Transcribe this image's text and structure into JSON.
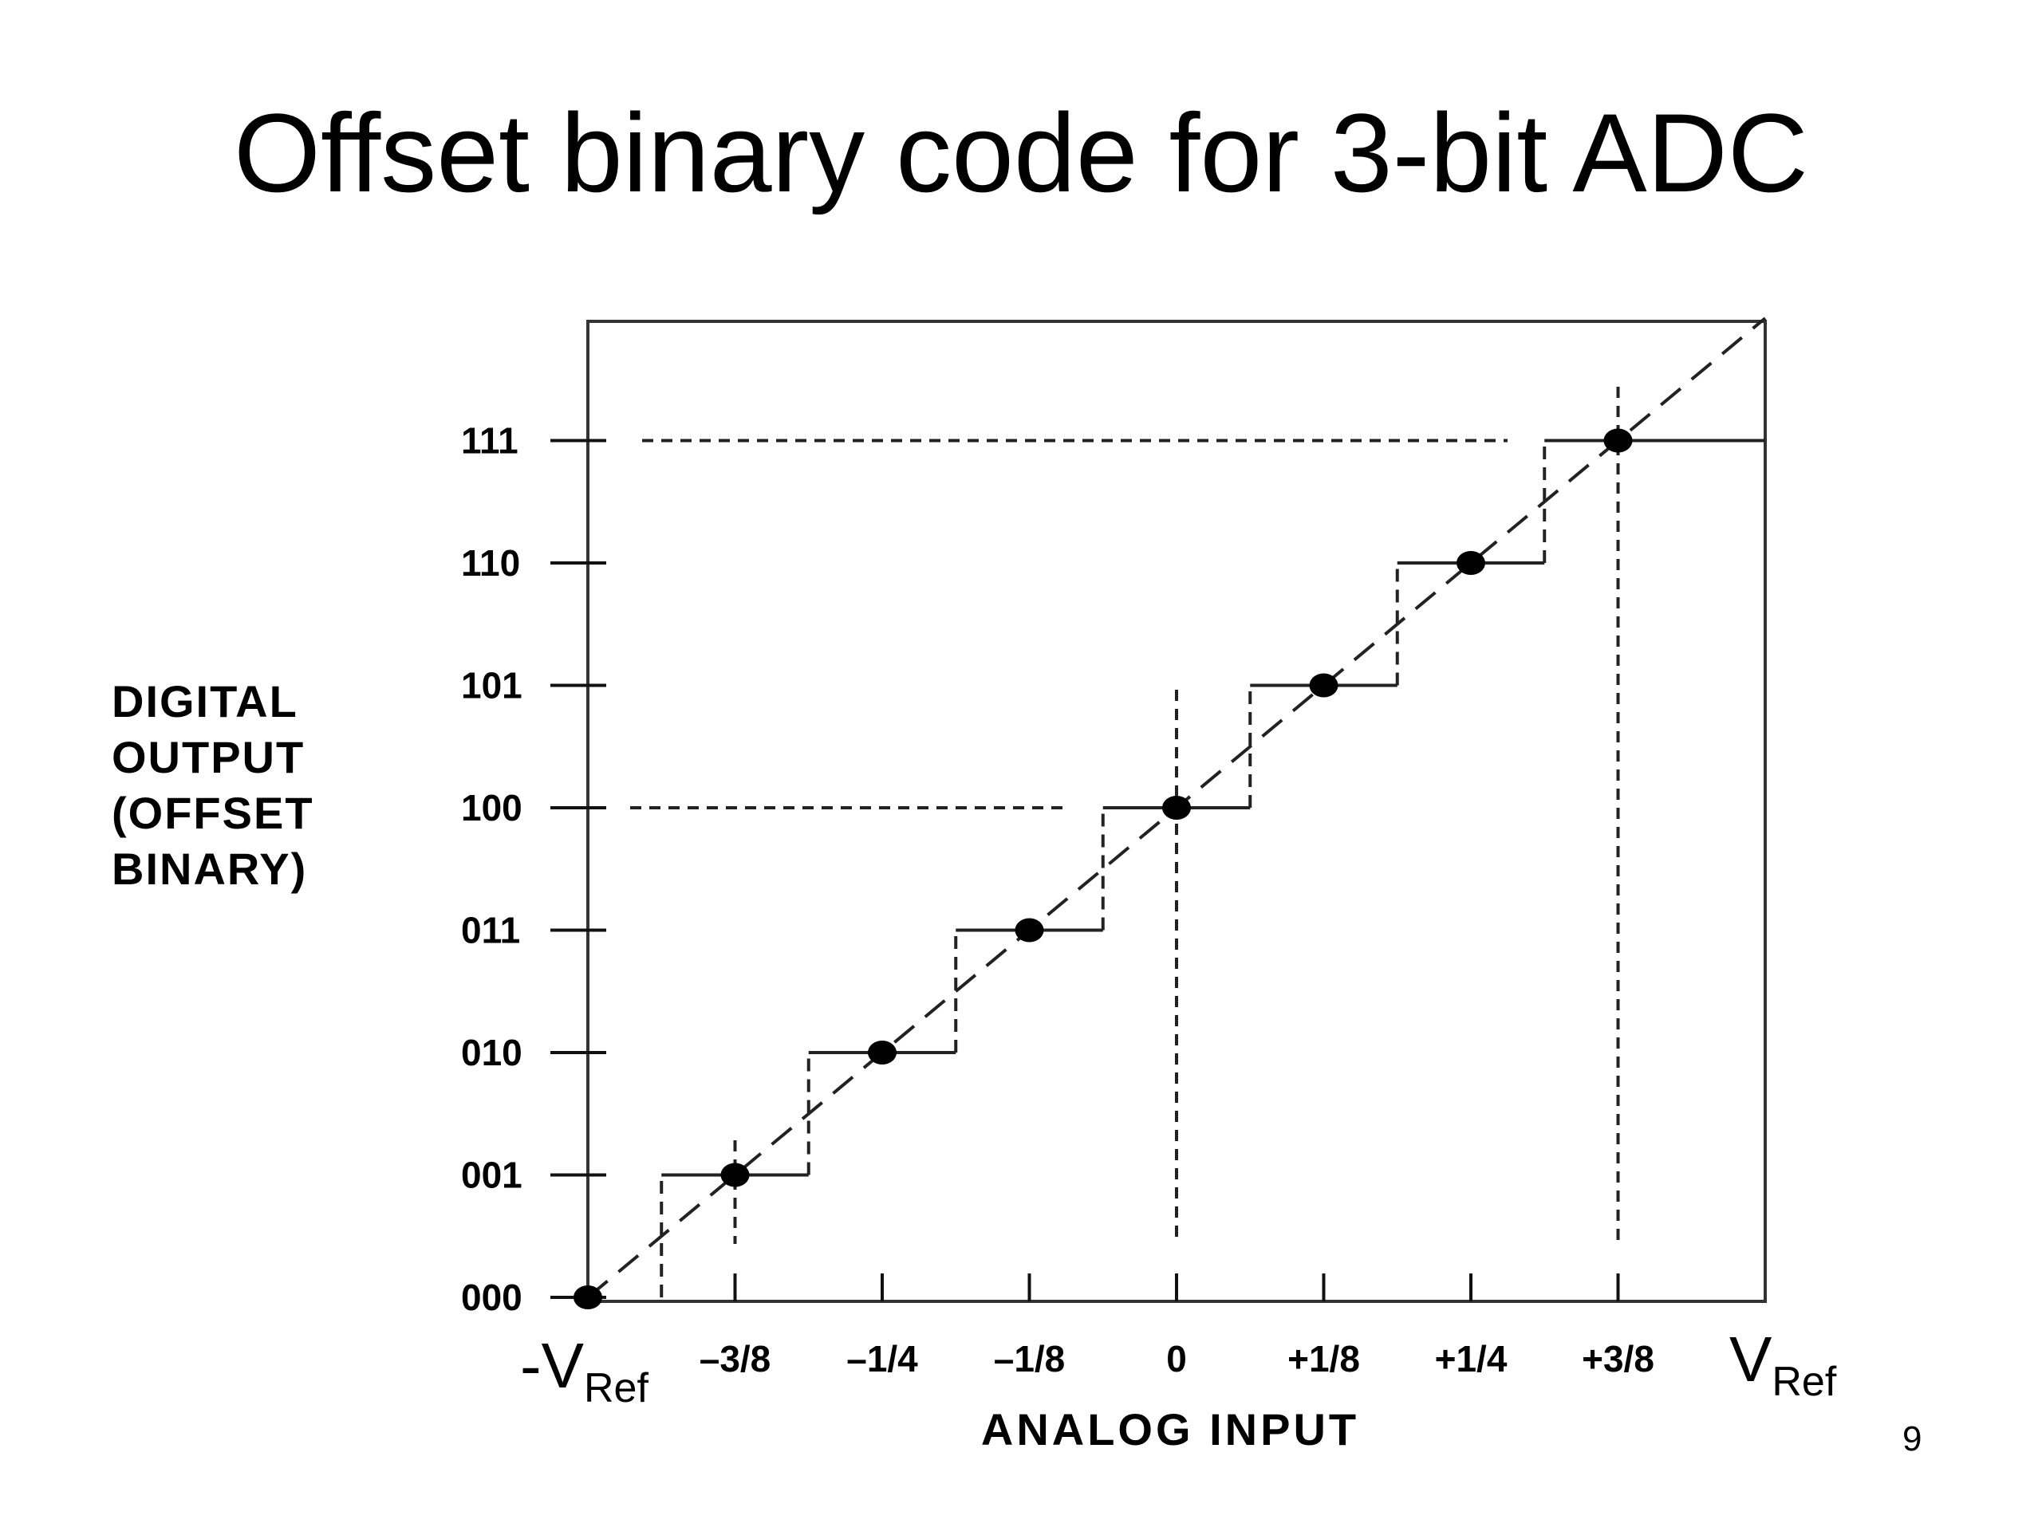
{
  "slide": {
    "title": "Offset binary code for 3-bit ADC",
    "page_number": "9"
  },
  "chart_data": {
    "type": "line",
    "xlabel": "ANALOG INPUT",
    "ylabel_lines": [
      "DIGITAL",
      "OUTPUT",
      "(OFFSET",
      "BINARY)"
    ],
    "x_ticks": [
      {
        "value": -0.375,
        "label": "–3/8"
      },
      {
        "value": -0.25,
        "label": "–1/4"
      },
      {
        "value": -0.125,
        "label": "–1/8"
      },
      {
        "value": 0,
        "label": "0"
      },
      {
        "value": 0.125,
        "label": "+1/8"
      },
      {
        "value": 0.25,
        "label": "+1/4"
      },
      {
        "value": 0.375,
        "label": "+3/8"
      }
    ],
    "x_end_labels": {
      "left_main": "-V",
      "left_sub": "Ref",
      "right_main": "V",
      "right_sub": "Ref"
    },
    "xlim": [
      -0.5,
      0.5
    ],
    "y_ticks": [
      "000",
      "001",
      "010",
      "011",
      "100",
      "101",
      "110",
      "111"
    ],
    "ylim": [
      0,
      7
    ],
    "series": [
      {
        "style": "ideal-transfer-dashed",
        "x": [
          -0.5,
          0.5
        ],
        "y": [
          0,
          8
        ]
      },
      {
        "style": "staircase-solid",
        "x": [
          -0.4375,
          -0.3125,
          -0.1875,
          -0.0625,
          0.0625,
          0.1875,
          0.3125,
          0.5
        ],
        "y": [
          1,
          2,
          3,
          4,
          5,
          6,
          7,
          7
        ]
      },
      {
        "style": "code-center-points",
        "x": [
          -0.5,
          -0.375,
          -0.25,
          -0.125,
          0,
          0.125,
          0.25,
          0.375
        ],
        "y": [
          0,
          1,
          2,
          3,
          4,
          5,
          6,
          7
        ]
      }
    ],
    "grid": false,
    "legend": "none"
  }
}
